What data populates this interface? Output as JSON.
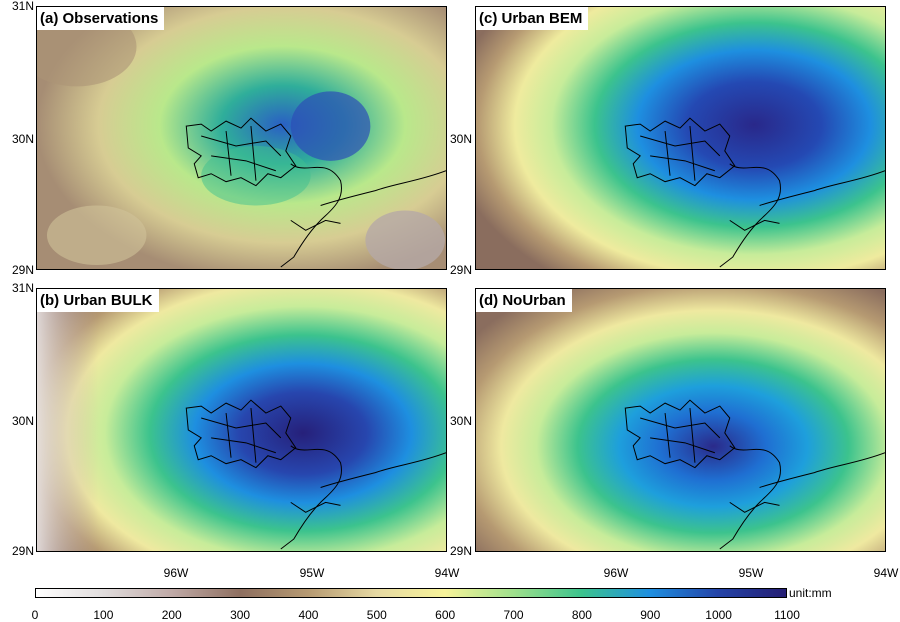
{
  "panels": [
    {
      "id": "a",
      "label": "(a) Observations",
      "center_value": 800,
      "peak": 1000
    },
    {
      "id": "c",
      "label": "(c) Urban BEM",
      "center_value": 1050,
      "peak": 1080
    },
    {
      "id": "b",
      "label": "(b) Urban BULK",
      "center_value": 1050,
      "peak": 1100
    },
    {
      "id": "d",
      "label": "(d) NoUrban",
      "center_value": 950,
      "peak": 1020
    }
  ],
  "y_ticks": [
    "31N",
    "30N",
    "29N"
  ],
  "x_ticks": [
    "96W",
    "95W",
    "94W"
  ],
  "colorbar": {
    "unit": "unit:mm",
    "ticks": [
      "0",
      "100",
      "200",
      "300",
      "400",
      "500",
      "600",
      "700",
      "800",
      "900",
      "1000",
      "1100"
    ],
    "colors": [
      "#ffffff",
      "#e0dcdc",
      "#bfa9a6",
      "#8e6f60",
      "#b69a72",
      "#e6d9a3",
      "#f7f39a",
      "#9fe08c",
      "#3cc38d",
      "#1e8fe0",
      "#2444a8",
      "#251e73"
    ]
  }
}
